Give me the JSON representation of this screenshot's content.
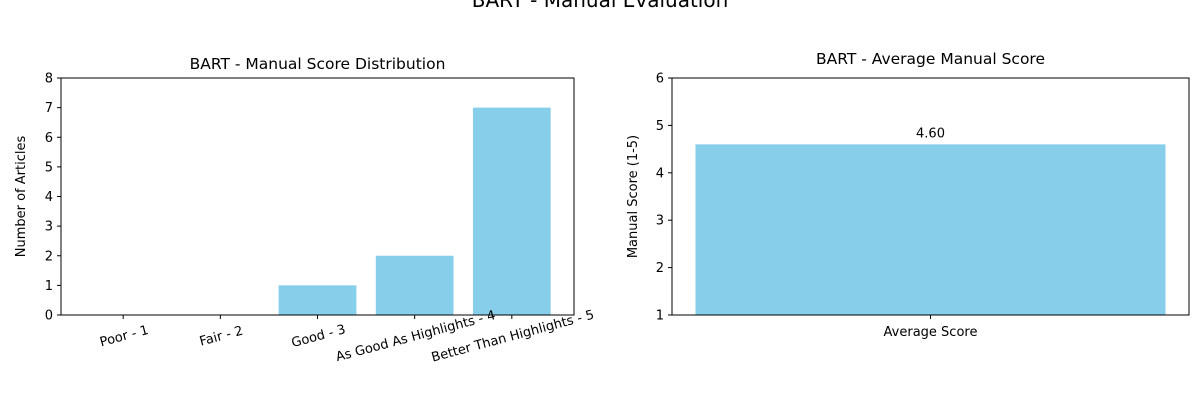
{
  "suptitle": "BART - Manual Evaluation",
  "chart_data": [
    {
      "type": "bar",
      "title": "BART - Manual Score Distribution",
      "xlabel": "",
      "ylabel": "Number of Articles",
      "categories": [
        "Poor - 1",
        "Fair - 2",
        "Good - 3",
        "As Good As Highlights - 4",
        "Better Than Highlights - 5"
      ],
      "values": [
        0,
        0,
        1,
        2,
        7
      ],
      "ylim": [
        0,
        8
      ],
      "yticks": [
        0,
        1,
        2,
        3,
        4,
        5,
        6,
        7,
        8
      ],
      "bar_color": "#87CEEB",
      "xtick_rotation": 15,
      "grid": false
    },
    {
      "type": "bar",
      "title": "BART - Average Manual Score",
      "xlabel": "",
      "ylabel": "Manual Score (1-5)",
      "categories": [
        "Average Score"
      ],
      "values": [
        4.6
      ],
      "data_labels": [
        "4.60"
      ],
      "ylim": [
        1,
        6
      ],
      "yticks": [
        1,
        2,
        3,
        4,
        5,
        6
      ],
      "bar_color": "#87CEEB",
      "grid": false
    }
  ]
}
